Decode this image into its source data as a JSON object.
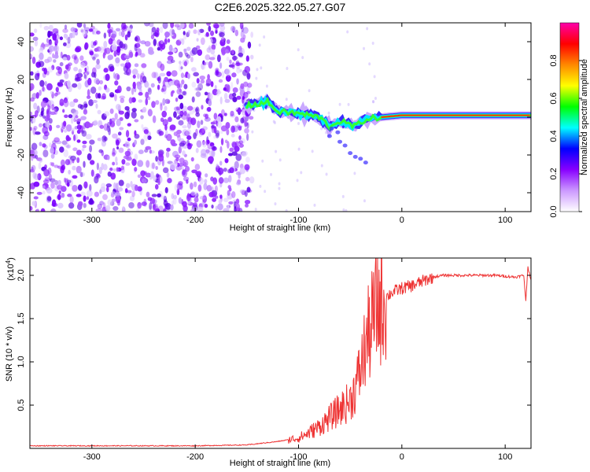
{
  "chart_data": [
    {
      "type": "heatmap",
      "title": "C2E6.2025.322.05.27.G07",
      "xlabel": "Height of straight line (km)",
      "ylabel": "Frequency (Hz)",
      "xlim": [
        -360,
        125
      ],
      "ylim": [
        -50,
        50
      ],
      "x_ticks": [
        -300,
        -200,
        -100,
        0,
        100
      ],
      "y_ticks": [
        -40,
        -20,
        0,
        20,
        40
      ],
      "colorbar": {
        "label": "Normalized spectral amplitude",
        "range": [
          0,
          1
        ],
        "ticks": [
          0.0,
          0.2,
          0.4,
          0.6,
          0.8
        ],
        "colors": [
          "#ffffff",
          "#cc99ff",
          "#8800ff",
          "#0000ff",
          "#00ffff",
          "#00ff00",
          "#ffff00",
          "#ff8800",
          "#ff0000",
          "#ff00aa"
        ]
      },
      "ridge": [
        {
          "x": -150,
          "y": 6
        },
        {
          "x": -130,
          "y": 8
        },
        {
          "x": -120,
          "y": 3
        },
        {
          "x": -100,
          "y": 2
        },
        {
          "x": -80,
          "y": 0
        },
        {
          "x": -70,
          "y": -5
        },
        {
          "x": -60,
          "y": -2
        },
        {
          "x": -45,
          "y": -5
        },
        {
          "x": -35,
          "y": -1
        },
        {
          "x": -20,
          "y": 0
        },
        {
          "x": 0,
          "y": 1
        },
        {
          "x": 50,
          "y": 1
        },
        {
          "x": 100,
          "y": 1
        },
        {
          "x": 125,
          "y": 1
        }
      ]
    },
    {
      "type": "line",
      "title": "",
      "xlabel": "Height of straight line (km)",
      "ylabel": "SNR (10 * v/v)",
      "scale_label": "(x10",
      "scale_exp": "4",
      "xlim": [
        -360,
        125
      ],
      "ylim": [
        0,
        2.2
      ],
      "x_ticks": [
        -300,
        -200,
        -100,
        0,
        100
      ],
      "y_ticks": [
        0.5,
        1.0,
        1.5,
        2.0
      ],
      "color": "#ee3333",
      "series": [
        {
          "x": [
            -360,
            -300,
            -200,
            -150,
            -120,
            -100,
            -90,
            -80,
            -70,
            -60,
            -50,
            -45,
            -40,
            -35,
            -30,
            -25,
            -20,
            -15,
            -10,
            0,
            10,
            20,
            30,
            40,
            50,
            60,
            70,
            80,
            90,
            100,
            110,
            118,
            120,
            122,
            125
          ],
          "values": [
            0.03,
            0.03,
            0.03,
            0.04,
            0.08,
            0.12,
            0.18,
            0.25,
            0.35,
            0.45,
            0.55,
            0.7,
            0.9,
            1.2,
            1.4,
            1.6,
            1.7,
            1.75,
            1.8,
            1.85,
            1.88,
            1.93,
            1.98,
            2.0,
            2.0,
            2.0,
            2.0,
            2.0,
            2.0,
            1.99,
            1.98,
            2.0,
            1.7,
            2.1,
            1.95
          ]
        }
      ]
    }
  ]
}
